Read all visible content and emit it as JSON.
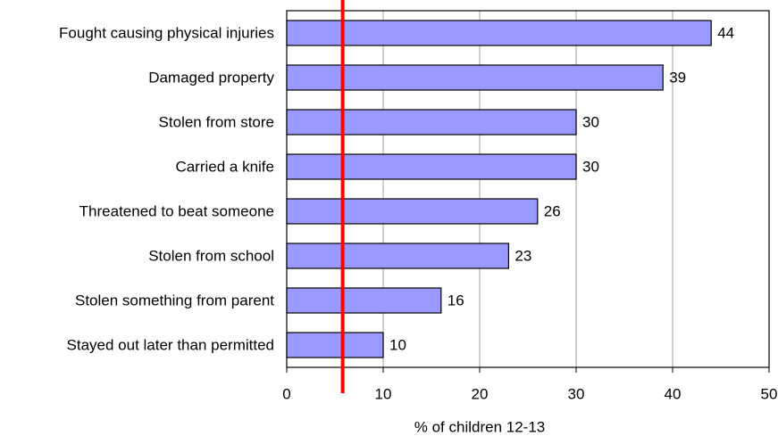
{
  "chart_data": {
    "type": "bar",
    "orientation": "horizontal",
    "categories": [
      "Fought causing physical injuries",
      "Damaged property",
      "Stolen from store",
      "Carried a knife",
      "Threatened to beat someone",
      "Stolen from school",
      "Stolen something from parent",
      "Stayed out later than permitted"
    ],
    "values": [
      44,
      39,
      30,
      30,
      26,
      23,
      16,
      10
    ],
    "color": "#9999ff",
    "xlabel": "% of children 12-13",
    "xlim": [
      0,
      50
    ],
    "xticks": [
      0,
      10,
      20,
      30,
      40,
      50
    ],
    "grid": true,
    "reference_value": 5.8,
    "reference_color": "#ff0000"
  }
}
